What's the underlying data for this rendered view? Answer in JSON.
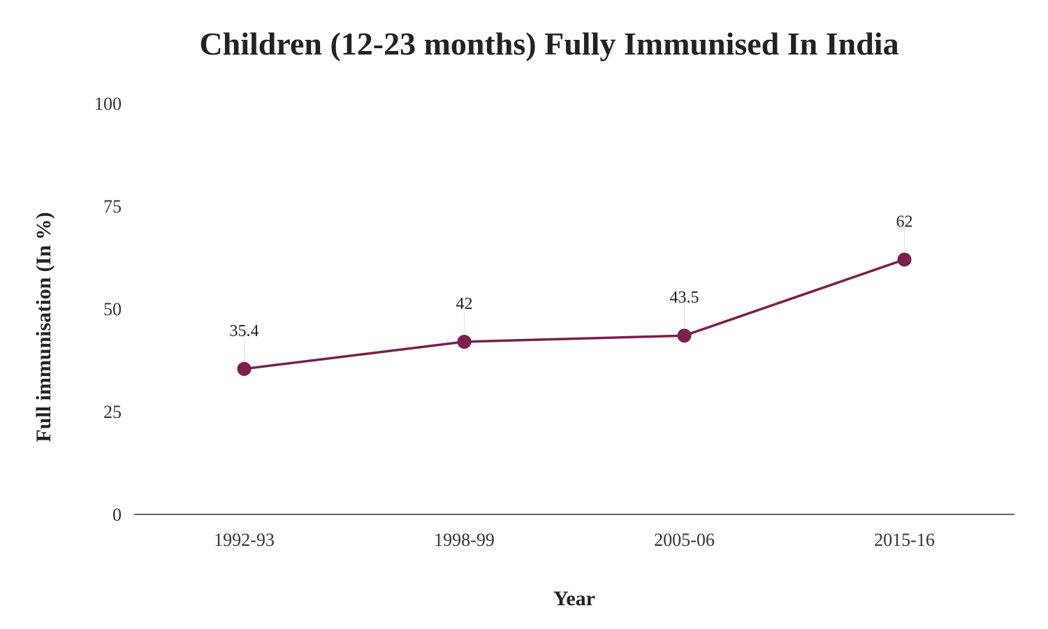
{
  "chart_data": {
    "type": "line",
    "title": "Children (12-23 months) Fully Immunised In India",
    "xlabel": "Year",
    "ylabel": "Full immunisation (In %)",
    "categories": [
      "1992-93",
      "1998-99",
      "2005-06",
      "2015-16"
    ],
    "series": [
      {
        "values": [
          35.4,
          42,
          43.5,
          62
        ],
        "labels": [
          "35.4",
          "42",
          "43.5",
          "62"
        ]
      }
    ],
    "ylim": [
      0,
      100
    ],
    "yticks": [
      0,
      25,
      50,
      75,
      100
    ],
    "grid": false,
    "legend": "none",
    "colors": {
      "series": "#7b1f4c",
      "axis": "#333333",
      "text": "#222222"
    }
  }
}
